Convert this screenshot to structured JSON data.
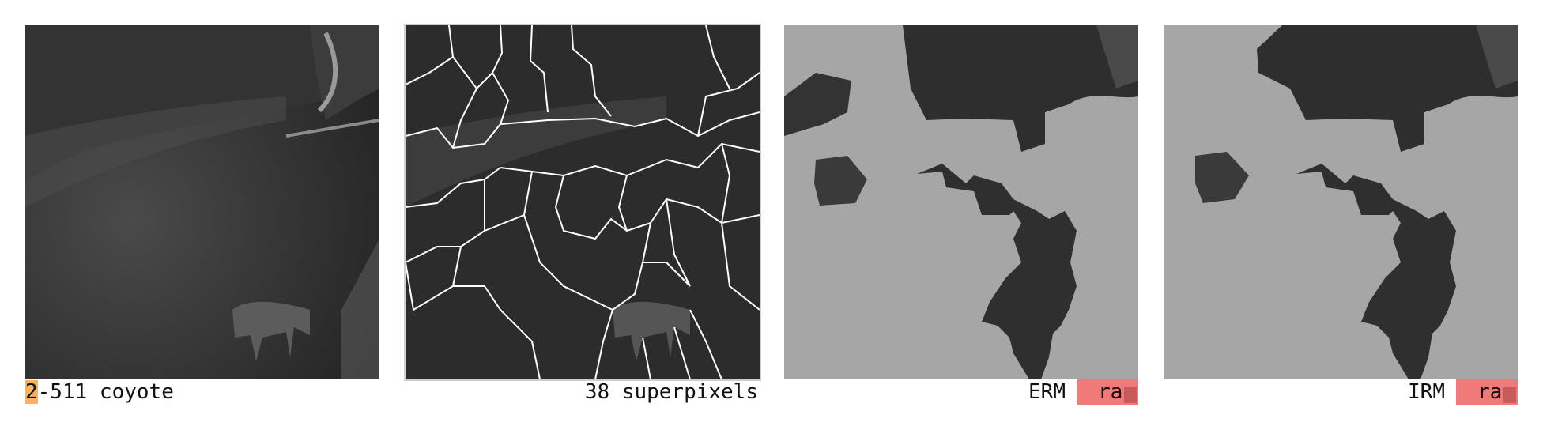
{
  "panels": [
    {
      "caption_highlight": "2",
      "caption_rest": "-511 coyote"
    },
    {
      "caption": "38 superpixels"
    },
    {
      "caption": "ERM",
      "badge": "rac"
    },
    {
      "caption": "IRM",
      "badge": "rac"
    }
  ],
  "colors": {
    "highlight": "#f9b35e",
    "badge": "#f07a7a",
    "mask": "#a6a6a6",
    "superpixel_boundary": "#ffffff"
  }
}
